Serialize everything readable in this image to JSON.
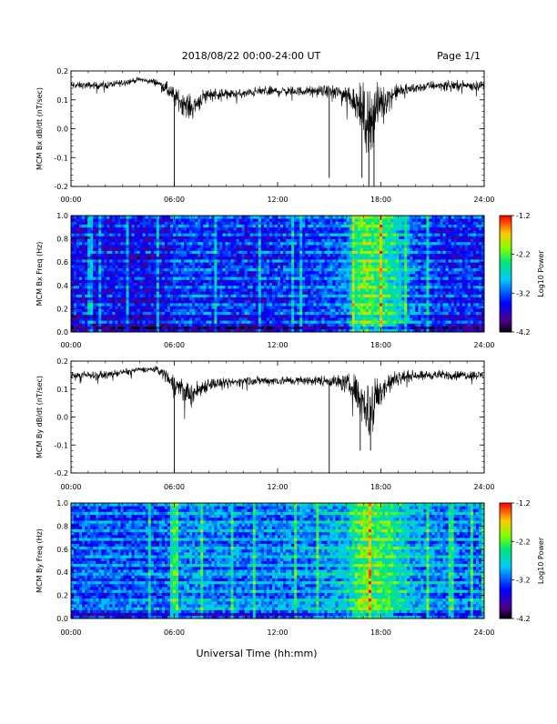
{
  "header": {
    "title": "2018/08/22  00:00-24:00 UT",
    "page": "Page 1/1"
  },
  "footer": {
    "xlabel": "Universal Time (hh:mm)"
  },
  "chart_data": [
    {
      "type": "line",
      "ylabel": "MCM Bx dB/dt (nT/sec)",
      "xlim": [
        0,
        24
      ],
      "ylim": [
        -0.2,
        0.2
      ],
      "x_ticks": [
        "00:00",
        "06:00",
        "12:00",
        "18:00",
        "24:00"
      ],
      "y_ticks": [
        "0.2",
        "0.1",
        "0.0",
        "-0.1",
        "-0.2"
      ],
      "series": [
        {
          "x": [
            0,
            1,
            2,
            3,
            4,
            5,
            5.5,
            6,
            6.5,
            7,
            7.5,
            8,
            9,
            10,
            11,
            12,
            13,
            14,
            15,
            16,
            16.5,
            17,
            17.3,
            17.6,
            18,
            18.5,
            19,
            20,
            21,
            22,
            23,
            24
          ],
          "y": [
            0.15,
            0.15,
            0.15,
            0.16,
            0.17,
            0.16,
            0.14,
            0.11,
            0.09,
            0.07,
            0.1,
            0.12,
            0.12,
            0.12,
            0.13,
            0.13,
            0.13,
            0.13,
            0.13,
            0.12,
            0.1,
            0.05,
            0.02,
            0.06,
            0.09,
            0.11,
            0.13,
            0.14,
            0.15,
            0.15,
            0.15,
            0.15
          ],
          "noise": [
            0.015,
            0.015,
            0.015,
            0.015,
            0.01,
            0.015,
            0.03,
            0.04,
            0.05,
            0.05,
            0.04,
            0.03,
            0.02,
            0.02,
            0.02,
            0.02,
            0.02,
            0.02,
            0.025,
            0.04,
            0.07,
            0.12,
            0.15,
            0.12,
            0.08,
            0.05,
            0.03,
            0.02,
            0.02,
            0.02,
            0.02,
            0.02
          ],
          "spikes": [
            [
              6.0,
              -0.2
            ],
            [
              15.0,
              -0.17
            ],
            [
              17.3,
              -0.2
            ],
            [
              17.6,
              -0.2
            ],
            [
              16.9,
              -0.17
            ]
          ]
        }
      ]
    },
    {
      "type": "heatmap",
      "ylabel": "MCM Bx Freq (Hz)",
      "xlim": [
        0,
        24
      ],
      "ylim": [
        0,
        1
      ],
      "x_ticks": [
        "00:00",
        "06:00",
        "12:00",
        "18:00",
        "24:00"
      ],
      "y_ticks": [
        "1.0",
        "0.8",
        "0.6",
        "0.4",
        "0.2",
        "0.0"
      ],
      "colorbar": {
        "label": "Log10 Power",
        "range": [
          -4.2,
          -1.2
        ],
        "ticks": [
          "-1.2",
          "-2.2",
          "-3.2",
          "-4.2"
        ]
      },
      "activity": {
        "x": [
          0,
          5.5,
          6,
          7,
          10,
          14,
          15,
          16,
          16.5,
          17,
          17.5,
          18,
          18.5,
          19,
          20,
          21,
          22,
          24
        ],
        "level": [
          -3.6,
          -3.6,
          -3.4,
          -3.4,
          -3.5,
          -3.4,
          -3.3,
          -3.2,
          -2.6,
          -2.2,
          -2.4,
          -2.5,
          -2.6,
          -2.8,
          -3.3,
          -3.4,
          -3.5,
          -3.5
        ]
      }
    },
    {
      "type": "line",
      "ylabel": "MCM By dB/dt (nT/sec)",
      "xlim": [
        0,
        24
      ],
      "ylim": [
        -0.2,
        0.2
      ],
      "x_ticks": [
        "00:00",
        "06:00",
        "12:00",
        "18:00",
        "24:00"
      ],
      "y_ticks": [
        "0.2",
        "0.1",
        "0.0",
        "-0.1",
        "-0.2"
      ],
      "series": [
        {
          "x": [
            0,
            1,
            2,
            3,
            4,
            5,
            5.5,
            6,
            6.5,
            7,
            7.5,
            8,
            9,
            10,
            11,
            12,
            13,
            14,
            15,
            16,
            16.5,
            17,
            17.3,
            17.6,
            18,
            18.5,
            19,
            20,
            21,
            22,
            23,
            24
          ],
          "y": [
            0.15,
            0.15,
            0.15,
            0.16,
            0.17,
            0.17,
            0.15,
            0.12,
            0.1,
            0.08,
            0.1,
            0.12,
            0.12,
            0.13,
            0.13,
            0.13,
            0.13,
            0.13,
            0.13,
            0.12,
            0.1,
            0.05,
            0.02,
            0.06,
            0.1,
            0.12,
            0.14,
            0.15,
            0.15,
            0.15,
            0.15,
            0.15
          ],
          "noise": [
            0.015,
            0.015,
            0.015,
            0.015,
            0.01,
            0.015,
            0.03,
            0.04,
            0.05,
            0.05,
            0.04,
            0.03,
            0.02,
            0.02,
            0.02,
            0.02,
            0.02,
            0.02,
            0.025,
            0.04,
            0.07,
            0.11,
            0.14,
            0.11,
            0.07,
            0.05,
            0.03,
            0.02,
            0.02,
            0.02,
            0.02,
            0.02
          ],
          "spikes": [
            [
              6.0,
              -0.2
            ],
            [
              15.0,
              -0.2
            ],
            [
              16.8,
              -0.12
            ],
            [
              17.4,
              -0.12
            ]
          ]
        }
      ]
    },
    {
      "type": "heatmap",
      "ylabel": "MCM By Freq (Hz)",
      "xlim": [
        0,
        24
      ],
      "ylim": [
        0,
        1
      ],
      "x_ticks": [
        "00:00",
        "06:00",
        "12:00",
        "18:00",
        "24:00"
      ],
      "y_ticks": [
        "1.0",
        "0.8",
        "0.6",
        "0.4",
        "0.2",
        "0.0"
      ],
      "colorbar": {
        "label": "Log10 Power",
        "range": [
          -4.2,
          -1.2
        ],
        "ticks": [
          "-1.2",
          "-2.2",
          "-3.2",
          "-4.2"
        ]
      },
      "activity": {
        "x": [
          0,
          5.5,
          6,
          7,
          10,
          14,
          15,
          16,
          16.5,
          17,
          17.5,
          18,
          18.5,
          19,
          20,
          21,
          22,
          24
        ],
        "level": [
          -3.3,
          -3.3,
          -3.1,
          -3.1,
          -3.2,
          -3.1,
          -3.0,
          -2.9,
          -2.5,
          -2.2,
          -2.4,
          -2.4,
          -2.5,
          -2.7,
          -3.0,
          -3.1,
          -3.2,
          -3.2
        ]
      }
    }
  ]
}
